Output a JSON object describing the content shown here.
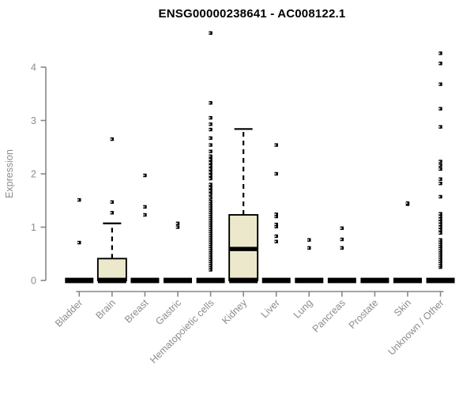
{
  "chart_data": {
    "type": "boxplot",
    "title": "ENSG00000238641 - AC008122.1",
    "ylabel": "Expression",
    "ylim": [
      0,
      4.75
    ],
    "yticks": [
      0,
      1,
      2,
      3,
      4
    ],
    "grid": false,
    "legend": "none",
    "colors": {
      "box_fill": "#ECE8CC",
      "box_line": "#000000",
      "axis": "#878787",
      "labels": "#8c8c8c",
      "title": "#000000",
      "background": "#ffffff"
    },
    "categories": [
      "Bladder",
      "Brain",
      "Breast",
      "Gastric",
      "Hematopoietic cells",
      "Kidney",
      "Liver",
      "Lung",
      "Pancreas",
      "Prostate",
      "Skin",
      "Unknown / Other"
    ],
    "groups": [
      {
        "category": "Bladder",
        "q1": 0,
        "median": 0,
        "q3": 0,
        "whisker_low": 0,
        "whisker_high": 0,
        "outliers": [
          0.71,
          1.51
        ]
      },
      {
        "category": "Brain",
        "q1": 0,
        "median": 0,
        "q3": 0.41,
        "whisker_low": 0,
        "whisker_high": 1.07,
        "outliers": [
          1.27,
          1.47,
          2.65
        ]
      },
      {
        "category": "Breast",
        "q1": 0,
        "median": 0,
        "q3": 0,
        "whisker_low": 0,
        "whisker_high": 0,
        "outliers": [
          1.23,
          1.38,
          1.97
        ]
      },
      {
        "category": "Gastric",
        "q1": 0,
        "median": 0,
        "q3": 0,
        "whisker_low": 0,
        "whisker_high": 0,
        "outliers": [
          1.0,
          1.07
        ]
      },
      {
        "category": "Hematopoietic cells",
        "q1": 0,
        "median": 0,
        "q3": 0,
        "whisker_low": 0,
        "whisker_high": 0,
        "outliers": [
          0.2,
          0.24,
          0.28,
          0.32,
          0.36,
          0.4,
          0.44,
          0.48,
          0.52,
          0.56,
          0.6,
          0.64,
          0.68,
          0.72,
          0.76,
          0.8,
          0.84,
          0.88,
          0.92,
          0.96,
          1.0,
          1.04,
          1.08,
          1.12,
          1.16,
          1.2,
          1.24,
          1.28,
          1.32,
          1.36,
          1.4,
          1.44,
          1.48,
          1.55,
          1.62,
          1.68,
          1.74,
          1.8,
          1.91,
          1.97,
          2.03,
          2.09,
          2.15,
          2.21,
          2.27,
          2.33,
          2.42,
          2.54,
          2.67,
          2.83,
          2.93,
          3.05,
          3.33,
          4.64
        ]
      },
      {
        "category": "Kidney",
        "q1": 0,
        "median": 0.59,
        "q3": 1.23,
        "whisker_low": 0,
        "whisker_high": 2.84,
        "outliers": []
      },
      {
        "category": "Liver",
        "q1": 0,
        "median": 0,
        "q3": 0,
        "whisker_low": 0,
        "whisker_high": 0,
        "outliers": [
          0.73,
          0.83,
          1.01,
          1.05,
          1.2,
          1.24,
          2.0,
          2.54
        ]
      },
      {
        "category": "Lung",
        "q1": 0,
        "median": 0,
        "q3": 0,
        "whisker_low": 0,
        "whisker_high": 0,
        "outliers": [
          0.61,
          0.76
        ]
      },
      {
        "category": "Pancreas",
        "q1": 0,
        "median": 0,
        "q3": 0,
        "whisker_low": 0,
        "whisker_high": 0,
        "outliers": [
          0.61,
          0.77,
          0.98
        ]
      },
      {
        "category": "Prostate",
        "q1": 0,
        "median": 0,
        "q3": 0,
        "whisker_low": 0,
        "whisker_high": 0,
        "outliers": []
      },
      {
        "category": "Skin",
        "q1": 0,
        "median": 0,
        "q3": 0,
        "whisker_low": 0,
        "whisker_high": 0,
        "outliers": [
          1.43,
          1.45
        ]
      },
      {
        "category": "Unknown / Other",
        "q1": 0,
        "median": 0,
        "q3": 0,
        "whisker_low": 0,
        "whisker_high": 0,
        "outliers": [
          0.25,
          0.28,
          0.32,
          0.36,
          0.4,
          0.44,
          0.48,
          0.52,
          0.56,
          0.6,
          0.64,
          0.68,
          0.72,
          0.76,
          0.89,
          0.95,
          1.0,
          1.05,
          1.1,
          1.15,
          1.2,
          1.25,
          1.57,
          1.82,
          1.9,
          2.09,
          2.16,
          2.23,
          2.88,
          3.22,
          3.68,
          4.07,
          4.26
        ]
      }
    ]
  }
}
